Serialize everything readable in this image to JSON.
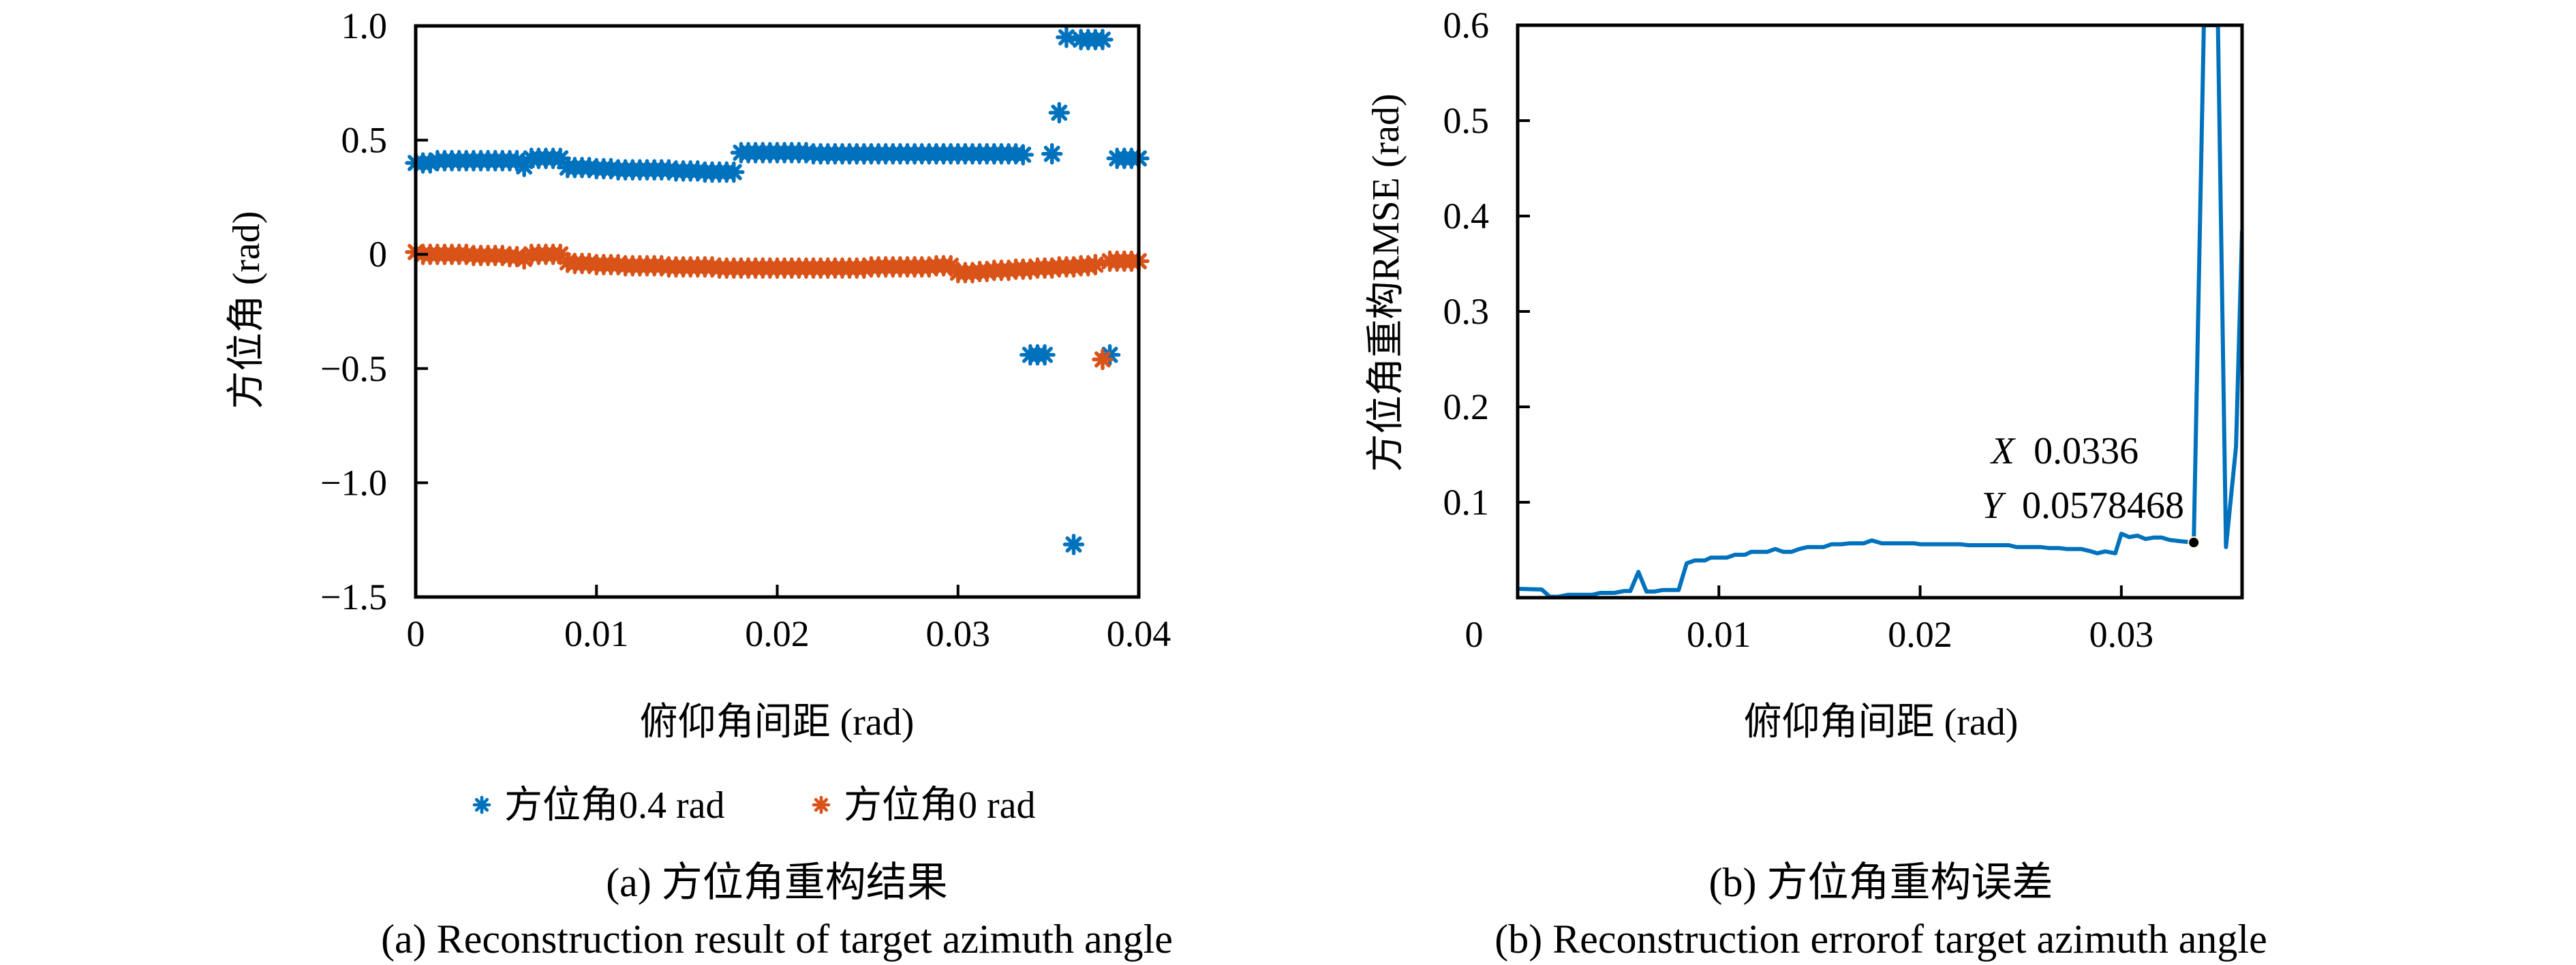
{
  "figure": {
    "captions": {
      "a_cn": "(a) 方位角重构结果",
      "a_en": "(a) Reconstruction result of target azimuth angle",
      "b_cn": "(b) 方位角重构误差",
      "b_en": "(b) Reconstruction errorof target azimuth angle"
    }
  },
  "chart_data": [
    {
      "id": "a",
      "type": "scatter",
      "title": "",
      "xlabel": "俯仰角间距 (rad)",
      "ylabel": "方位角 (rad)",
      "xlim": [
        0,
        0.04
      ],
      "ylim": [
        -1.5,
        1.0
      ],
      "xticks": [
        0,
        0.01,
        0.02,
        0.03,
        0.04
      ],
      "xtick_labels": [
        "0",
        "0.01",
        "0.02",
        "0.03",
        "0.04"
      ],
      "yticks": [
        1.0,
        0.5,
        0,
        -0.5,
        -1.0,
        -1.5
      ],
      "ytick_labels": [
        "1.0",
        "0.5",
        "0",
        "−0.5",
        "−1.0",
        "−1.5"
      ],
      "grid": false,
      "legend_position": "bottom",
      "marker": "asterisk",
      "series": [
        {
          "name": "方位角0.4 rad",
          "color": "#0072BD",
          "x": [
            0,
            0.0004,
            0.0008,
            0.0012,
            0.0016,
            0.002,
            0.0024,
            0.0028,
            0.0032,
            0.0036,
            0.004,
            0.0044,
            0.0048,
            0.0052,
            0.0056,
            0.006,
            0.0064,
            0.0068,
            0.0072,
            0.0076,
            0.008,
            0.0084,
            0.0088,
            0.0092,
            0.0096,
            0.01,
            0.0104,
            0.0108,
            0.0112,
            0.0116,
            0.012,
            0.0124,
            0.0128,
            0.0132,
            0.0136,
            0.014,
            0.0144,
            0.0148,
            0.0152,
            0.0156,
            0.016,
            0.0164,
            0.0168,
            0.0172,
            0.0176,
            0.018,
            0.0184,
            0.0188,
            0.0192,
            0.0196,
            0.02,
            0.0204,
            0.0208,
            0.0212,
            0.0216,
            0.022,
            0.0224,
            0.0228,
            0.0232,
            0.0236,
            0.024,
            0.0244,
            0.0248,
            0.0252,
            0.0256,
            0.026,
            0.0264,
            0.0268,
            0.0272,
            0.0276,
            0.028,
            0.0284,
            0.0288,
            0.0292,
            0.0296,
            0.03,
            0.0304,
            0.0308,
            0.0312,
            0.0316,
            0.032,
            0.0324,
            0.0328,
            0.0332,
            0.0336,
            0.034,
            0.0344,
            0.0348,
            0.0352,
            0.0356,
            0.036,
            0.0364,
            0.0368,
            0.0372,
            0.0376,
            0.038,
            0.0384,
            0.0388,
            0.0392,
            0.0396,
            0.04
          ],
          "y": [
            0.4,
            0.4,
            0.4,
            0.41,
            0.41,
            0.41,
            0.41,
            0.41,
            0.41,
            0.41,
            0.41,
            0.41,
            0.41,
            0.41,
            0.41,
            0.385,
            0.42,
            0.42,
            0.42,
            0.42,
            0.42,
            0.38,
            0.38,
            0.38,
            0.38,
            0.375,
            0.375,
            0.375,
            0.37,
            0.37,
            0.37,
            0.37,
            0.37,
            0.37,
            0.37,
            0.37,
            0.365,
            0.365,
            0.365,
            0.365,
            0.36,
            0.36,
            0.36,
            0.36,
            0.36,
            0.445,
            0.445,
            0.445,
            0.445,
            0.445,
            0.445,
            0.445,
            0.445,
            0.445,
            0.445,
            0.44,
            0.44,
            0.44,
            0.44,
            0.44,
            0.44,
            0.44,
            0.44,
            0.44,
            0.44,
            0.44,
            0.44,
            0.44,
            0.44,
            0.44,
            0.44,
            0.44,
            0.44,
            0.44,
            0.44,
            0.44,
            0.44,
            0.44,
            0.44,
            0.44,
            0.44,
            0.44,
            0.44,
            0.44,
            0.436,
            -0.44,
            -0.44,
            -0.44,
            0.44,
            0.62,
            0.95,
            -1.27,
            0.94,
            0.94,
            0.94,
            0.94,
            -0.44,
            0.42,
            0.42,
            0.42,
            0.42
          ]
        },
        {
          "name": "方位角0 rad",
          "color": "#D95319",
          "x": [
            0,
            0.0004,
            0.0008,
            0.0012,
            0.0016,
            0.002,
            0.0024,
            0.0028,
            0.0032,
            0.0036,
            0.004,
            0.0044,
            0.0048,
            0.0052,
            0.0056,
            0.006,
            0.0064,
            0.0068,
            0.0072,
            0.0076,
            0.008,
            0.0084,
            0.0088,
            0.0092,
            0.0096,
            0.01,
            0.0104,
            0.0108,
            0.0112,
            0.0116,
            0.012,
            0.0124,
            0.0128,
            0.0132,
            0.0136,
            0.014,
            0.0144,
            0.0148,
            0.0152,
            0.0156,
            0.016,
            0.0164,
            0.0168,
            0.0172,
            0.0176,
            0.018,
            0.0184,
            0.0188,
            0.0192,
            0.0196,
            0.02,
            0.0204,
            0.0208,
            0.0212,
            0.0216,
            0.022,
            0.0224,
            0.0228,
            0.0232,
            0.0236,
            0.024,
            0.0244,
            0.0248,
            0.0252,
            0.0256,
            0.026,
            0.0264,
            0.0268,
            0.0272,
            0.0276,
            0.028,
            0.0284,
            0.0288,
            0.0292,
            0.0296,
            0.03,
            0.0304,
            0.0308,
            0.0312,
            0.0316,
            0.032,
            0.0324,
            0.0328,
            0.0332,
            0.0336,
            0.034,
            0.0344,
            0.0348,
            0.0352,
            0.0356,
            0.036,
            0.0364,
            0.0368,
            0.0372,
            0.0376,
            0.038,
            0.0384,
            0.0388,
            0.0392,
            0.0396,
            0.04
          ],
          "y": [
            0.01,
            0.0,
            0.0,
            0.0,
            0.0,
            0.0,
            0.0,
            0.0,
            -0.005,
            -0.005,
            -0.005,
            -0.005,
            -0.005,
            -0.01,
            -0.01,
            -0.02,
            0.0,
            0.0,
            0.0,
            0.0,
            0.0,
            -0.035,
            -0.04,
            -0.04,
            -0.04,
            -0.045,
            -0.045,
            -0.045,
            -0.045,
            -0.05,
            -0.05,
            -0.05,
            -0.05,
            -0.05,
            -0.05,
            -0.055,
            -0.055,
            -0.055,
            -0.055,
            -0.055,
            -0.055,
            -0.055,
            -0.06,
            -0.06,
            -0.06,
            -0.06,
            -0.06,
            -0.06,
            -0.06,
            -0.06,
            -0.06,
            -0.06,
            -0.06,
            -0.06,
            -0.06,
            -0.06,
            -0.06,
            -0.06,
            -0.06,
            -0.06,
            -0.06,
            -0.06,
            -0.06,
            -0.055,
            -0.055,
            -0.055,
            -0.055,
            -0.055,
            -0.055,
            -0.055,
            -0.055,
            -0.055,
            -0.05,
            -0.05,
            -0.05,
            -0.08,
            -0.08,
            -0.08,
            -0.075,
            -0.075,
            -0.07,
            -0.07,
            -0.07,
            -0.065,
            -0.065,
            -0.065,
            -0.06,
            -0.06,
            -0.06,
            -0.055,
            -0.055,
            -0.055,
            -0.05,
            -0.05,
            -0.045,
            -0.46,
            -0.03,
            -0.03,
            -0.03,
            -0.03,
            -0.03
          ]
        }
      ]
    },
    {
      "id": "b",
      "type": "line",
      "title": "",
      "xlabel": "俯仰角间距 (rad)",
      "ylabel": "方位角重构RMSE (rad)",
      "xlim": [
        0,
        0.036
      ],
      "ylim": [
        0,
        0.6
      ],
      "xticks": [
        0,
        0.01,
        0.02,
        0.03
      ],
      "xtick_labels": [
        "0",
        "0.01",
        "0.02",
        "0.03"
      ],
      "yticks": [
        0.6,
        0.5,
        0.4,
        0.3,
        0.2,
        0.1
      ],
      "ytick_labels": [
        "0.6",
        "0.5",
        "0.4",
        "0.3",
        "0.2",
        "0.1"
      ],
      "grid": false,
      "series": [
        {
          "name": "RMSE",
          "color": "#0072BD",
          "x": [
            0,
            0.0012,
            0.0016,
            0.002,
            0.0025,
            0.0037,
            0.0041,
            0.0048,
            0.0053,
            0.0056,
            0.006,
            0.0064,
            0.0068,
            0.0072,
            0.008,
            0.0084,
            0.0088,
            0.0093,
            0.0096,
            0.0104,
            0.0108,
            0.0113,
            0.0116,
            0.0124,
            0.0128,
            0.0132,
            0.0136,
            0.014,
            0.0144,
            0.0152,
            0.0156,
            0.0161,
            0.0165,
            0.0172,
            0.0176,
            0.0181,
            0.0197,
            0.02,
            0.022,
            0.0224,
            0.0244,
            0.0248,
            0.026,
            0.0264,
            0.0269,
            0.0273,
            0.028,
            0.0285,
            0.0288,
            0.0292,
            0.0297,
            0.03,
            0.0304,
            0.0308,
            0.0312,
            0.0316,
            0.032,
            0.0324,
            0.033,
            0.0336,
            0.0341,
            0.0348,
            0.0352,
            0.0357,
            0.036
          ],
          "y": [
            0.0093,
            0.0086,
            0.001,
            0.001,
            0.003,
            0.003,
            0.005,
            0.005,
            0.007,
            0.007,
            0.027,
            0.0064,
            0.0064,
            0.008,
            0.008,
            0.036,
            0.039,
            0.039,
            0.042,
            0.042,
            0.045,
            0.045,
            0.048,
            0.048,
            0.051,
            0.048,
            0.048,
            0.051,
            0.053,
            0.053,
            0.056,
            0.056,
            0.057,
            0.057,
            0.06,
            0.057,
            0.057,
            0.056,
            0.056,
            0.055,
            0.055,
            0.053,
            0.053,
            0.052,
            0.052,
            0.051,
            0.051,
            0.0485,
            0.0465,
            0.0485,
            0.0465,
            0.067,
            0.0635,
            0.065,
            0.0615,
            0.063,
            0.063,
            0.0605,
            0.059,
            0.0578468,
            0.6,
            0.6,
            0.053,
            0.158,
            0.385
          ]
        }
      ],
      "datatip": {
        "x_label": "X",
        "x_value": "0.0336",
        "y_label": "Y",
        "y_value": "0.0578468",
        "x": 0.0336,
        "y": 0.0578468
      }
    }
  ]
}
